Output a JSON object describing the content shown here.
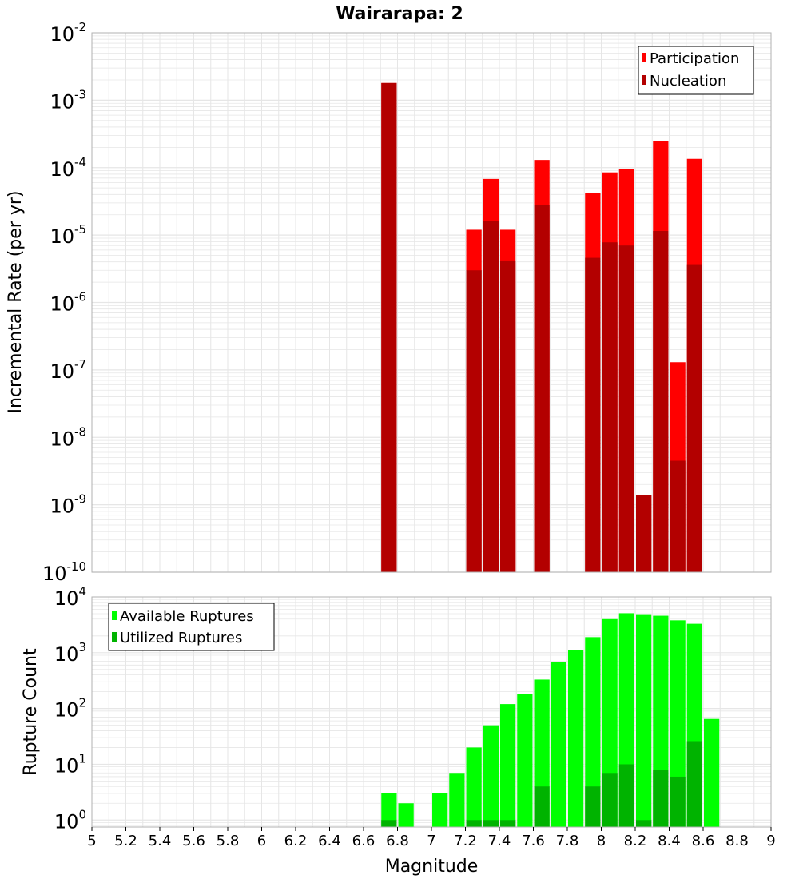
{
  "colors": {
    "participation": "#ff0000",
    "nucleation": "#b30000",
    "available": "#00ff00",
    "utilized": "#00b300",
    "grid": "#e6e6e6",
    "frame": "#b0b0b0"
  },
  "chart_data": [
    {
      "type": "bar",
      "title": "Wairarapa: 2",
      "ylabel": "Incremental Rate (per yr)",
      "yscale": "log",
      "ylim": [
        1e-10,
        0.01
      ],
      "xlim": [
        5,
        9
      ],
      "grid": true,
      "legend_position": "top-right",
      "y_tick_exponents": [
        "-2",
        "-3",
        "-4",
        "-5",
        "-6",
        "-7",
        "-8",
        "-9",
        "-10"
      ],
      "y_tick_base": "10",
      "series": [
        {
          "name": "Participation",
          "color": "#ff0000",
          "points": [
            {
              "x": 6.75,
              "y": 0.0018
            },
            {
              "x": 7.25,
              "y": 1.2e-05
            },
            {
              "x": 7.35,
              "y": 6.8e-05
            },
            {
              "x": 7.45,
              "y": 1.2e-05
            },
            {
              "x": 7.65,
              "y": 0.00013
            },
            {
              "x": 7.95,
              "y": 4.2e-05
            },
            {
              "x": 8.05,
              "y": 8.5e-05
            },
            {
              "x": 8.15,
              "y": 9.5e-05
            },
            {
              "x": 8.25,
              "y": 1.4e-09
            },
            {
              "x": 8.35,
              "y": 0.00025
            },
            {
              "x": 8.45,
              "y": 1.3e-07
            },
            {
              "x": 8.55,
              "y": 0.000135
            }
          ]
        },
        {
          "name": "Nucleation",
          "color": "#b30000",
          "points": [
            {
              "x": 6.75,
              "y": 0.0018
            },
            {
              "x": 7.25,
              "y": 3e-06
            },
            {
              "x": 7.35,
              "y": 1.6e-05
            },
            {
              "x": 7.45,
              "y": 4.2e-06
            },
            {
              "x": 7.65,
              "y": 2.8e-05
            },
            {
              "x": 7.95,
              "y": 4.6e-06
            },
            {
              "x": 8.05,
              "y": 7.8e-06
            },
            {
              "x": 8.15,
              "y": 7e-06
            },
            {
              "x": 8.25,
              "y": 1.4e-09
            },
            {
              "x": 8.35,
              "y": 1.15e-05
            },
            {
              "x": 8.45,
              "y": 4.5e-09
            },
            {
              "x": 8.55,
              "y": 3.6e-06
            }
          ]
        }
      ]
    },
    {
      "type": "bar",
      "ylabel": "Rupture Count",
      "xlabel": "Magnitude",
      "yscale": "log",
      "ylim": [
        0.75,
        10000
      ],
      "xlim": [
        5,
        9
      ],
      "grid": true,
      "legend_position": "top-left",
      "y_tick_exponents": [
        "4",
        "3",
        "2",
        "1",
        "0"
      ],
      "y_tick_base": "10",
      "x_ticks": [
        "5",
        "5.2",
        "5.4",
        "5.6",
        "5.8",
        "6",
        "6.2",
        "6.4",
        "6.6",
        "6.8",
        "7",
        "7.2",
        "7.4",
        "7.6",
        "7.8",
        "8",
        "8.2",
        "8.4",
        "8.6",
        "8.8",
        "9"
      ],
      "series": [
        {
          "name": "Available Ruptures",
          "color": "#00ff00",
          "points": [
            {
              "x": 6.75,
              "y": 3
            },
            {
              "x": 6.85,
              "y": 2
            },
            {
              "x": 7.05,
              "y": 3
            },
            {
              "x": 7.15,
              "y": 7
            },
            {
              "x": 7.25,
              "y": 20
            },
            {
              "x": 7.35,
              "y": 50
            },
            {
              "x": 7.45,
              "y": 120
            },
            {
              "x": 7.55,
              "y": 180
            },
            {
              "x": 7.65,
              "y": 330
            },
            {
              "x": 7.75,
              "y": 680
            },
            {
              "x": 7.85,
              "y": 1100
            },
            {
              "x": 7.95,
              "y": 1900
            },
            {
              "x": 8.05,
              "y": 4000
            },
            {
              "x": 8.15,
              "y": 5100
            },
            {
              "x": 8.25,
              "y": 4900
            },
            {
              "x": 8.35,
              "y": 4600
            },
            {
              "x": 8.45,
              "y": 3800
            },
            {
              "x": 8.55,
              "y": 3300
            },
            {
              "x": 8.65,
              "y": 65
            }
          ]
        },
        {
          "name": "Utilized Ruptures",
          "color": "#00b300",
          "points": [
            {
              "x": 6.75,
              "y": 1
            },
            {
              "x": 7.25,
              "y": 1
            },
            {
              "x": 7.35,
              "y": 1
            },
            {
              "x": 7.45,
              "y": 1
            },
            {
              "x": 7.65,
              "y": 4
            },
            {
              "x": 7.95,
              "y": 4
            },
            {
              "x": 8.05,
              "y": 7
            },
            {
              "x": 8.15,
              "y": 10
            },
            {
              "x": 8.25,
              "y": 1
            },
            {
              "x": 8.35,
              "y": 8
            },
            {
              "x": 8.45,
              "y": 6
            },
            {
              "x": 8.55,
              "y": 26
            }
          ]
        }
      ]
    }
  ]
}
